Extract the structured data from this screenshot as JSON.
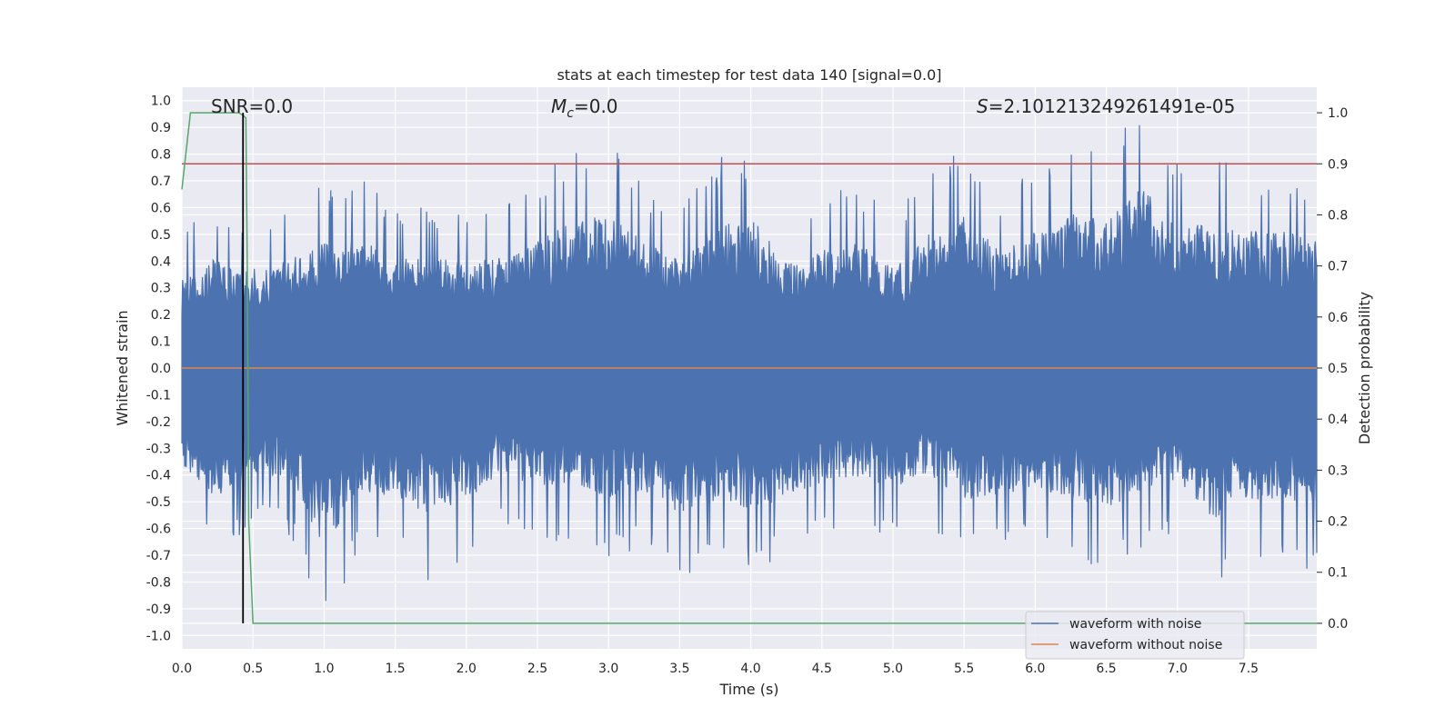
{
  "chart_data": {
    "type": "line",
    "title": "stats at each timestep for test data 140 [signal=0.0]",
    "xlabel": "Time (s)",
    "ylabel": "Whitened strain",
    "y2label": "Detection probability",
    "xlim": [
      0.0,
      7.98
    ],
    "ylim": [
      -1.05,
      1.05
    ],
    "y2lim": [
      -0.05,
      1.05
    ],
    "xticks": [
      "0.0",
      "0.5",
      "1.0",
      "1.5",
      "2.0",
      "2.5",
      "3.0",
      "3.5",
      "4.0",
      "4.5",
      "5.0",
      "5.5",
      "6.0",
      "6.5",
      "7.0",
      "7.5"
    ],
    "yticks": [
      "1.0",
      "0.9",
      "0.8",
      "0.7",
      "0.6",
      "0.5",
      "0.4",
      "0.3",
      "0.2",
      "0.1",
      "0.0",
      "-0.1",
      "-0.2",
      "-0.3",
      "-0.4",
      "-0.5",
      "-0.6",
      "-0.7",
      "-0.8",
      "-0.9",
      "-1.0"
    ],
    "y2ticks": [
      "1.0",
      "0.9",
      "0.8",
      "0.7",
      "0.6",
      "0.5",
      "0.4",
      "0.3",
      "0.2",
      "0.1",
      "0.0"
    ],
    "grid": true,
    "legend_position": "lower-right",
    "annotations": {
      "snr": "SNR=0.0",
      "mc_symbol": "M",
      "mc_sub": "c",
      "mc_value": "=0.0",
      "s_symbol": "S",
      "s_value": "=2.101213249261491e-05"
    },
    "series": [
      {
        "name": "waveform with noise",
        "color": "#4c72b0",
        "axis": "left",
        "envelope_step": 0.25,
        "upper": [
          0.52,
          0.62,
          0.55,
          0.6,
          0.7,
          0.72,
          0.6,
          0.62,
          0.58,
          0.62,
          0.72,
          0.82,
          0.84,
          0.7,
          0.6,
          0.78,
          0.84,
          0.58,
          0.66,
          0.7,
          0.56,
          0.74,
          0.84,
          0.66,
          0.76,
          0.86,
          0.82,
          1.0,
          0.78,
          0.8,
          0.76,
          0.76,
          0.7
        ],
        "lower": [
          -0.55,
          -0.72,
          -0.58,
          -0.62,
          -1.0,
          -0.68,
          -0.72,
          -0.82,
          -0.74,
          -0.58,
          -0.66,
          -0.64,
          -0.72,
          -0.68,
          -0.8,
          -0.74,
          -0.78,
          -0.72,
          -0.64,
          -0.6,
          -0.66,
          -0.58,
          -0.74,
          -0.7,
          -0.66,
          -0.72,
          -0.78,
          -0.68,
          -0.62,
          -0.84,
          -0.72,
          -0.74,
          -0.78
        ]
      },
      {
        "name": "waveform without noise",
        "color": "#dd8452",
        "axis": "left",
        "constant": 0.0
      },
      {
        "name": "detection probability",
        "color": "#55a868",
        "axis": "right",
        "x": [
          0.0,
          0.06,
          0.1,
          0.2,
          0.3,
          0.4,
          0.43,
          0.45,
          0.46,
          0.47,
          0.5,
          0.6,
          1.0,
          2.0,
          4.0,
          6.0,
          7.98
        ],
        "y": [
          0.85,
          1.0,
          1.0,
          1.0,
          1.0,
          1.0,
          0.995,
          0.99,
          0.7,
          0.2,
          0.0,
          0.0,
          0.0,
          0.0,
          0.0,
          0.0,
          0.0
        ]
      }
    ],
    "threshold": {
      "value": 0.9,
      "axis": "right",
      "color": "#c44e52"
    },
    "marker": {
      "x": 0.43,
      "color": "#000000"
    }
  }
}
